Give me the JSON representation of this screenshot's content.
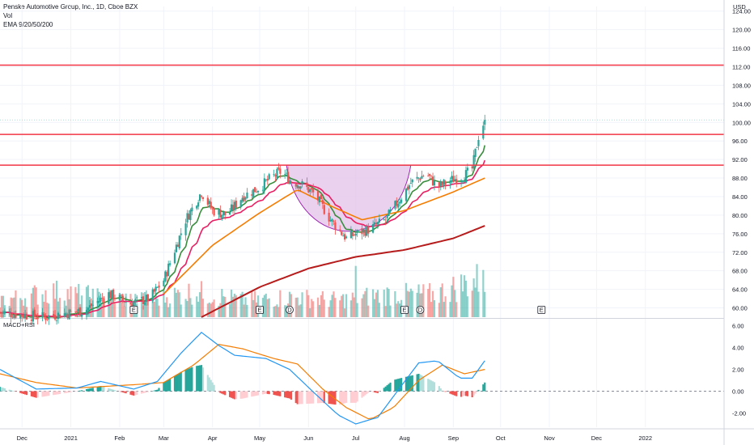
{
  "header": {
    "title": "Penske Automotive Group, Inc., 1D, Cboe BZX",
    "volume_label": "Vol",
    "ema_label": "EMA 9/20/50/200",
    "lower_pane_label": "MACD+RSI"
  },
  "colors": {
    "up": "#26a69a",
    "down": "#ef5350",
    "ema9": "#388e3c",
    "ema20": "#e91e63",
    "ema50": "#f57c00",
    "ema200": "#b71c1c",
    "level_line": "#f23645",
    "cup_fill": "#e1bee7",
    "cup_stroke": "#9c27b0",
    "macd": "#2196f3",
    "signal": "#f57c00",
    "last_price_tag": "#26a69a"
  },
  "chart_data": [
    {
      "type": "candlestick",
      "currency": "USD",
      "ylim": [
        58,
        125
      ],
      "y_ticks": [
        "124.00",
        "120.00",
        "116.00",
        "112.00",
        "108.00",
        "104.00",
        "100.00",
        "96.00",
        "92.00",
        "88.00",
        "84.00",
        "80.00",
        "76.00",
        "72.00",
        "68.00",
        "64.00",
        "60.00"
      ],
      "x_ticks": [
        "Dec",
        "2021",
        "Feb",
        "Mar",
        "Apr",
        "May",
        "Jun",
        "Jul",
        "Aug",
        "Sep",
        "Oct",
        "Nov",
        "Dec",
        "2022"
      ],
      "x_tick_positions": [
        "2020-12-01",
        "2021-01-01",
        "2021-02-01",
        "2021-03-01",
        "2021-04-01",
        "2021-05-01",
        "2021-06-01",
        "2021-07-01",
        "2021-08-01",
        "2021-09-01",
        "2021-10-01",
        "2021-11-01",
        "2021-12-01",
        "2022-01-01"
      ],
      "x_range": [
        "2020-11-17",
        "2022-02-20"
      ],
      "price_keypoints": [
        {
          "date": "2020-11-17",
          "close": 59.0
        },
        {
          "date": "2020-12-15",
          "close": 58.0
        },
        {
          "date": "2021-01-10",
          "close": 59.5
        },
        {
          "date": "2021-01-25",
          "close": 63.0
        },
        {
          "date": "2021-02-08",
          "close": 61.0
        },
        {
          "date": "2021-02-20",
          "close": 62.0
        },
        {
          "date": "2021-03-01",
          "close": 66.0
        },
        {
          "date": "2021-03-15",
          "close": 79.0
        },
        {
          "date": "2021-03-25",
          "close": 85.0
        },
        {
          "date": "2021-04-01",
          "close": 81.0
        },
        {
          "date": "2021-04-10",
          "close": 80.0
        },
        {
          "date": "2021-04-20",
          "close": 84.0
        },
        {
          "date": "2021-05-01",
          "close": 86.0
        },
        {
          "date": "2021-05-08",
          "close": 88.0
        },
        {
          "date": "2021-05-15",
          "close": 89.5
        },
        {
          "date": "2021-05-20",
          "close": 87.5
        },
        {
          "date": "2021-05-28",
          "close": 86.5
        },
        {
          "date": "2021-06-05",
          "close": 84.5
        },
        {
          "date": "2021-06-15",
          "close": 79.0
        },
        {
          "date": "2021-06-25",
          "close": 75.0
        },
        {
          "date": "2021-07-01",
          "close": 76.0
        },
        {
          "date": "2021-07-10",
          "close": 77.0
        },
        {
          "date": "2021-07-20",
          "close": 79.0
        },
        {
          "date": "2021-07-30",
          "close": 84.0
        },
        {
          "date": "2021-08-05",
          "close": 87.0
        },
        {
          "date": "2021-08-15",
          "close": 89.0
        },
        {
          "date": "2021-08-22",
          "close": 86.0
        },
        {
          "date": "2021-08-30",
          "close": 87.5
        },
        {
          "date": "2021-09-08",
          "close": 88.5
        },
        {
          "date": "2021-09-13",
          "close": 90.0
        },
        {
          "date": "2021-09-17",
          "close": 97.0
        },
        {
          "date": "2021-09-21",
          "close": 100.54
        }
      ],
      "ema_keypoints": {
        "ema50": [
          {
            "date": "2021-03-01",
            "value": 63.0
          },
          {
            "date": "2021-04-01",
            "value": 73.5
          },
          {
            "date": "2021-05-01",
            "value": 80.5
          },
          {
            "date": "2021-05-25",
            "value": 85.5
          },
          {
            "date": "2021-06-15",
            "value": 82.0
          },
          {
            "date": "2021-07-05",
            "value": 79.0
          },
          {
            "date": "2021-08-01",
            "value": 81.0
          },
          {
            "date": "2021-09-01",
            "value": 85.0
          },
          {
            "date": "2021-09-21",
            "value": 88.0
          }
        ],
        "ema200": [
          {
            "date": "2021-03-25",
            "value": 58.0
          },
          {
            "date": "2021-05-01",
            "value": 64.5
          },
          {
            "date": "2021-06-01",
            "value": 68.5
          },
          {
            "date": "2021-07-01",
            "value": 71.0
          },
          {
            "date": "2021-08-01",
            "value": 72.5
          },
          {
            "date": "2021-09-01",
            "value": 75.0
          },
          {
            "date": "2021-09-21",
            "value": 77.7
          }
        ]
      },
      "horizontal_levels": [
        {
          "value": 112.35,
          "label": "112.35"
        },
        {
          "value": 97.42,
          "label": "97.42"
        },
        {
          "value": 90.77,
          "label": "90.77"
        }
      ],
      "last_price": {
        "value": 100.54,
        "label": "100.54"
      },
      "cup": {
        "start": "2021-05-18",
        "end": "2021-08-05",
        "rim": 90.77,
        "bottom": 73.5
      },
      "volume_scale": [
        0,
        3
      ],
      "volume_keypoints": [
        {
          "date": "2020-11-20",
          "value": 0.6
        },
        {
          "date": "2020-12-20",
          "value": 0.9
        },
        {
          "date": "2021-01-20",
          "value": 0.7
        },
        {
          "date": "2021-02-20",
          "value": 0.6
        },
        {
          "date": "2021-03-20",
          "value": 0.9
        },
        {
          "date": "2021-04-20",
          "value": 0.6
        },
        {
          "date": "2021-05-20",
          "value": 0.7
        },
        {
          "date": "2021-06-20",
          "value": 0.6
        },
        {
          "date": "2021-07-20",
          "value": 0.8
        },
        {
          "date": "2021-08-20",
          "value": 0.8
        },
        {
          "date": "2021-09-21",
          "value": 1.4
        }
      ],
      "volume_spikes": [
        {
          "date": "2021-01-02",
          "value": 2.45
        },
        {
          "date": "2021-07-01",
          "value": 1.9
        },
        {
          "date": "2021-09-20",
          "value": 1.75
        }
      ],
      "event_markers": [
        {
          "date": "2021-02-10",
          "label": "E"
        },
        {
          "date": "2021-05-01",
          "label": "E"
        },
        {
          "date": "2021-05-20",
          "label": "D"
        },
        {
          "date": "2021-08-01",
          "label": "E"
        },
        {
          "date": "2021-08-11",
          "label": "D"
        },
        {
          "date": "2021-10-27",
          "label": "E"
        }
      ]
    },
    {
      "type": "macd",
      "ylim": [
        -3.3,
        6.5
      ],
      "y_ticks": [
        "6.00",
        "4.00",
        "2.00",
        "0.00",
        "-2.00"
      ],
      "macd_keypoints": [
        {
          "date": "2020-11-17",
          "value": 2.0
        },
        {
          "date": "2020-12-10",
          "value": 0.2
        },
        {
          "date": "2021-01-05",
          "value": 0.3
        },
        {
          "date": "2021-01-20",
          "value": 0.9
        },
        {
          "date": "2021-02-10",
          "value": 0.2
        },
        {
          "date": "2021-02-25",
          "value": 0.9
        },
        {
          "date": "2021-03-12",
          "value": 3.5
        },
        {
          "date": "2021-03-25",
          "value": 5.4
        },
        {
          "date": "2021-04-05",
          "value": 4.2
        },
        {
          "date": "2021-04-15",
          "value": 3.3
        },
        {
          "date": "2021-05-05",
          "value": 3.0
        },
        {
          "date": "2021-05-20",
          "value": 2.0
        },
        {
          "date": "2021-06-05",
          "value": -0.2
        },
        {
          "date": "2021-06-20",
          "value": -2.2
        },
        {
          "date": "2021-07-01",
          "value": -3.0
        },
        {
          "date": "2021-07-15",
          "value": -2.4
        },
        {
          "date": "2021-07-30",
          "value": 0.5
        },
        {
          "date": "2021-08-10",
          "value": 2.6
        },
        {
          "date": "2021-08-22",
          "value": 2.8
        },
        {
          "date": "2021-09-05",
          "value": 1.2
        },
        {
          "date": "2021-09-13",
          "value": 1.2
        },
        {
          "date": "2021-09-21",
          "value": 2.8
        }
      ],
      "signal_keypoints": [
        {
          "date": "2020-11-17",
          "value": 1.6
        },
        {
          "date": "2020-12-10",
          "value": 0.8
        },
        {
          "date": "2021-01-05",
          "value": 0.3
        },
        {
          "date": "2021-02-10",
          "value": 0.6
        },
        {
          "date": "2021-03-01",
          "value": 0.8
        },
        {
          "date": "2021-03-20",
          "value": 2.4
        },
        {
          "date": "2021-04-05",
          "value": 4.3
        },
        {
          "date": "2021-04-20",
          "value": 3.9
        },
        {
          "date": "2021-05-10",
          "value": 3.0
        },
        {
          "date": "2021-05-25",
          "value": 2.5
        },
        {
          "date": "2021-06-10",
          "value": 0.2
        },
        {
          "date": "2021-06-25",
          "value": -1.5
        },
        {
          "date": "2021-07-10",
          "value": -2.6
        },
        {
          "date": "2021-07-25",
          "value": -1.5
        },
        {
          "date": "2021-08-10",
          "value": 1.0
        },
        {
          "date": "2021-08-25",
          "value": 2.4
        },
        {
          "date": "2021-09-08",
          "value": 1.6
        },
        {
          "date": "2021-09-21",
          "value": 2.0
        }
      ]
    }
  ]
}
